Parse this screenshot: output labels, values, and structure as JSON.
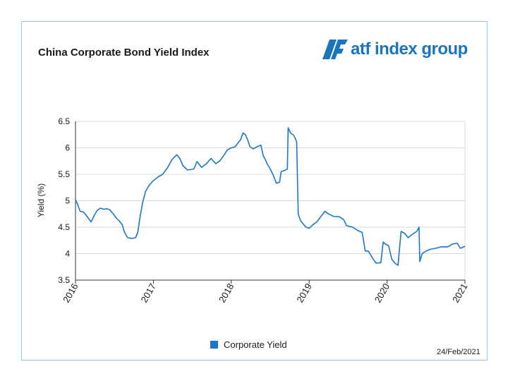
{
  "header": {
    "title": "China Corporate Bond Yield Index"
  },
  "logo": {
    "text": "atf index group",
    "color": "#1b75bc"
  },
  "footer": {
    "date": "24/Feb/2021"
  },
  "chart_data": {
    "type": "line",
    "title": "China Corporate Bond Yield Index",
    "xlabel": "",
    "ylabel": "Yield (%)",
    "xlim": [
      2016.0,
      2021.0
    ],
    "ylim": [
      3.5,
      6.5
    ],
    "y_ticks": [
      3.5,
      4,
      4.5,
      5,
      5.5,
      6,
      6.5
    ],
    "y_tick_labels": [
      "3.5",
      "4",
      "4.5",
      "5",
      "5.5",
      "6",
      "6.5"
    ],
    "x_ticks": [
      2016,
      2017,
      2018,
      2019,
      2020,
      2021
    ],
    "x_tick_labels": [
      "2016",
      "2017",
      "2018",
      "2019",
      "2020",
      "2021"
    ],
    "grid": true,
    "legend": "bottom-center",
    "series": [
      {
        "name": "Corporate Yield",
        "color": "#1976d2",
        "points": [
          [
            2016.0,
            5.02
          ],
          [
            2016.03,
            4.92
          ],
          [
            2016.06,
            4.8
          ],
          [
            2016.1,
            4.79
          ],
          [
            2016.13,
            4.74
          ],
          [
            2016.17,
            4.66
          ],
          [
            2016.2,
            4.6
          ],
          [
            2016.24,
            4.72
          ],
          [
            2016.28,
            4.82
          ],
          [
            2016.32,
            4.86
          ],
          [
            2016.36,
            4.84
          ],
          [
            2016.4,
            4.85
          ],
          [
            2016.44,
            4.83
          ],
          [
            2016.48,
            4.76
          ],
          [
            2016.52,
            4.68
          ],
          [
            2016.56,
            4.62
          ],
          [
            2016.6,
            4.55
          ],
          [
            2016.63,
            4.4
          ],
          [
            2016.67,
            4.3
          ],
          [
            2016.72,
            4.29
          ],
          [
            2016.77,
            4.3
          ],
          [
            2016.8,
            4.4
          ],
          [
            2016.83,
            4.7
          ],
          [
            2016.86,
            4.95
          ],
          [
            2016.9,
            5.18
          ],
          [
            2016.95,
            5.3
          ],
          [
            2017.0,
            5.38
          ],
          [
            2017.06,
            5.45
          ],
          [
            2017.12,
            5.5
          ],
          [
            2017.18,
            5.62
          ],
          [
            2017.24,
            5.78
          ],
          [
            2017.3,
            5.87
          ],
          [
            2017.34,
            5.8
          ],
          [
            2017.38,
            5.66
          ],
          [
            2017.44,
            5.58
          ],
          [
            2017.52,
            5.6
          ],
          [
            2017.56,
            5.74
          ],
          [
            2017.62,
            5.63
          ],
          [
            2017.68,
            5.7
          ],
          [
            2017.74,
            5.8
          ],
          [
            2017.8,
            5.7
          ],
          [
            2017.85,
            5.75
          ],
          [
            2017.9,
            5.85
          ],
          [
            2017.95,
            5.96
          ],
          [
            2018.0,
            6.0
          ],
          [
            2018.05,
            6.02
          ],
          [
            2018.09,
            6.1
          ],
          [
            2018.12,
            6.15
          ],
          [
            2018.15,
            6.28
          ],
          [
            2018.18,
            6.25
          ],
          [
            2018.21,
            6.15
          ],
          [
            2018.24,
            6.02
          ],
          [
            2018.28,
            5.98
          ],
          [
            2018.33,
            6.02
          ],
          [
            2018.38,
            6.05
          ],
          [
            2018.41,
            5.85
          ],
          [
            2018.43,
            5.8
          ],
          [
            2018.46,
            5.7
          ],
          [
            2018.5,
            5.6
          ],
          [
            2018.54,
            5.48
          ],
          [
            2018.58,
            5.33
          ],
          [
            2018.62,
            5.35
          ],
          [
            2018.64,
            5.55
          ],
          [
            2018.68,
            5.57
          ],
          [
            2018.72,
            5.6
          ],
          [
            2018.73,
            6.38
          ],
          [
            2018.76,
            6.28
          ],
          [
            2018.8,
            6.24
          ],
          [
            2018.83,
            6.15
          ],
          [
            2018.84,
            6.1
          ],
          [
            2018.86,
            4.75
          ],
          [
            2018.89,
            4.62
          ],
          [
            2018.93,
            4.55
          ],
          [
            2018.96,
            4.5
          ],
          [
            2019.0,
            4.48
          ],
          [
            2019.05,
            4.55
          ],
          [
            2019.1,
            4.6
          ],
          [
            2019.15,
            4.7
          ],
          [
            2019.2,
            4.8
          ],
          [
            2019.25,
            4.75
          ],
          [
            2019.32,
            4.7
          ],
          [
            2019.38,
            4.7
          ],
          [
            2019.44,
            4.65
          ],
          [
            2019.48,
            4.53
          ],
          [
            2019.56,
            4.5
          ],
          [
            2019.62,
            4.44
          ],
          [
            2019.68,
            4.4
          ],
          [
            2019.72,
            4.05
          ],
          [
            2019.76,
            4.05
          ],
          [
            2019.82,
            3.9
          ],
          [
            2019.86,
            3.82
          ],
          [
            2019.92,
            3.83
          ],
          [
            2019.95,
            4.22
          ],
          [
            2019.98,
            4.18
          ],
          [
            2020.02,
            4.15
          ],
          [
            2020.06,
            3.9
          ],
          [
            2020.1,
            3.82
          ],
          [
            2020.14,
            3.78
          ],
          [
            2020.18,
            4.42
          ],
          [
            2020.23,
            4.38
          ],
          [
            2020.27,
            4.3
          ],
          [
            2020.32,
            4.36
          ],
          [
            2020.38,
            4.42
          ],
          [
            2020.41,
            4.5
          ],
          [
            2020.42,
            3.85
          ],
          [
            2020.45,
            4.0
          ],
          [
            2020.5,
            4.05
          ],
          [
            2020.55,
            4.08
          ],
          [
            2020.62,
            4.1
          ],
          [
            2020.7,
            4.13
          ],
          [
            2020.78,
            4.13
          ],
          [
            2020.84,
            4.18
          ],
          [
            2020.9,
            4.2
          ],
          [
            2020.94,
            4.1
          ],
          [
            2020.97,
            4.12
          ],
          [
            2021.0,
            4.14
          ]
        ]
      }
    ]
  }
}
